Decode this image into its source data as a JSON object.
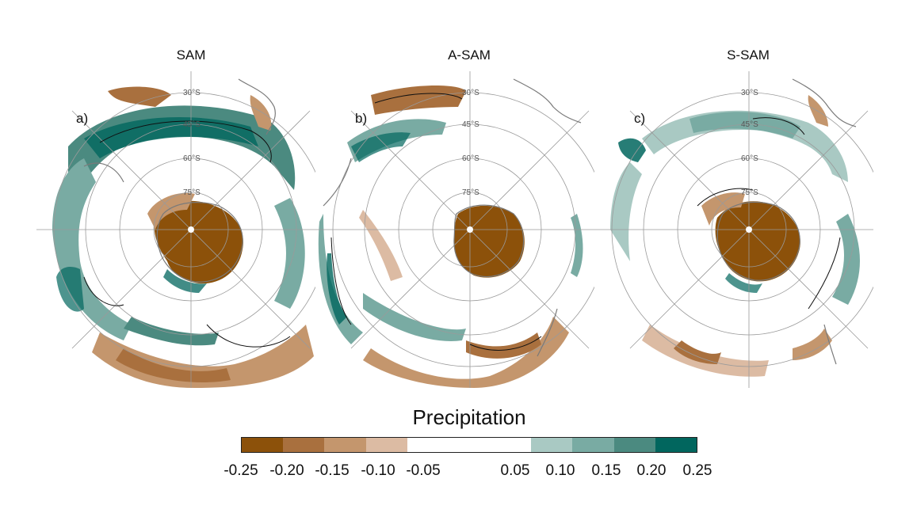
{
  "panels": [
    {
      "id": "a",
      "title": "SAM",
      "tag": "a)"
    },
    {
      "id": "b",
      "title": "A-SAM",
      "tag": "b)"
    },
    {
      "id": "c",
      "title": "S-SAM",
      "tag": "c)"
    }
  ],
  "lat_labels": [
    "30°S",
    "45°S",
    "60°S",
    "75°S"
  ],
  "colorbar": {
    "title": "Precipitation",
    "colors": [
      "#8c510a",
      "#a9703e",
      "#c4966d",
      "#dcbba3",
      "#ffffff",
      "#a9c9c3",
      "#79aba3",
      "#4b8a80",
      "#01665e"
    ],
    "ticks": [
      "-0.25",
      "-0.20",
      "-0.15",
      "-0.10",
      "-0.05",
      "0.05",
      "0.10",
      "0.15",
      "0.20",
      "0.25"
    ]
  },
  "colors": {
    "brown_dark": "#8c510a",
    "teal_dark": "#01665e",
    "coast": "#7a7a7a",
    "grid": "#9a9a9a"
  }
}
